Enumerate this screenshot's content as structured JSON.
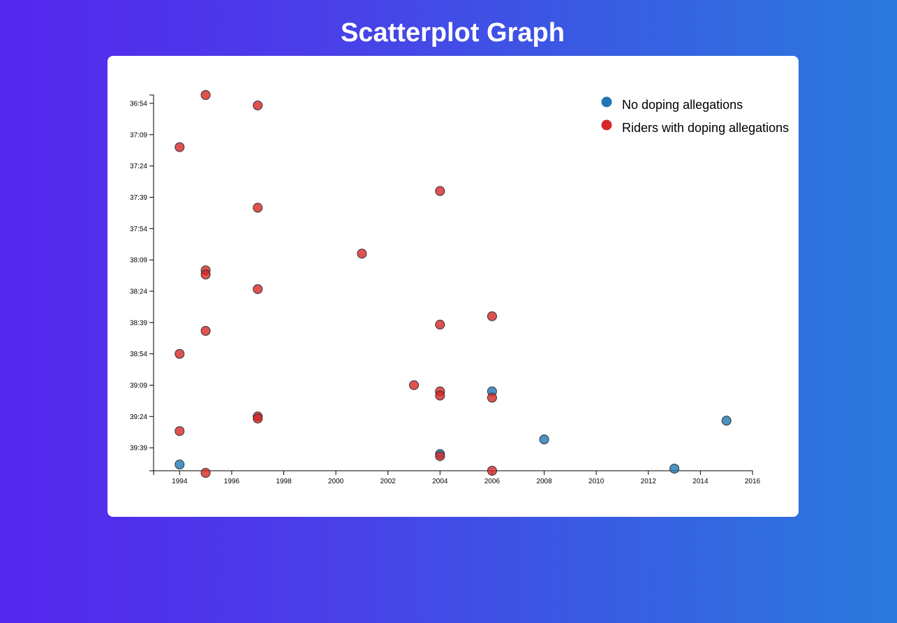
{
  "page": {
    "title": "Scatterplot Graph"
  },
  "colors": {
    "no_doping": "#1f77b4",
    "doping": "#d62728"
  },
  "chart_data": {
    "type": "scatter",
    "title": "Scatterplot Graph",
    "xlabel": "",
    "ylabel": "",
    "xlim": [
      1993,
      2016
    ],
    "ylim_seconds": [
      2210,
      2390
    ],
    "x_ticks": [
      "1994",
      "1996",
      "1998",
      "2000",
      "2002",
      "2004",
      "2006",
      "2008",
      "2010",
      "2012",
      "2014",
      "2016"
    ],
    "y_ticks": [
      "36:54",
      "37:09",
      "37:24",
      "37:39",
      "37:54",
      "38:09",
      "38:24",
      "38:39",
      "38:54",
      "39:09",
      "39:24",
      "39:39"
    ],
    "y_reversed": true,
    "legend": {
      "placement": "top-right",
      "entries": [
        {
          "label": "No doping allegations",
          "color": "#1f77b4"
        },
        {
          "label": "Riders with doping allegations",
          "color": "#d62728"
        }
      ]
    },
    "series": [
      {
        "name": "No doping allegations",
        "color": "#1f77b4",
        "points": [
          {
            "x": 1994,
            "y": "39:47"
          },
          {
            "x": 2004,
            "y": "39:42"
          },
          {
            "x": 2006,
            "y": "39:12"
          },
          {
            "x": 2008,
            "y": "39:35"
          },
          {
            "x": 2013,
            "y": "39:49"
          },
          {
            "x": 2015,
            "y": "39:26"
          }
        ]
      },
      {
        "name": "Riders with doping allegations",
        "color": "#d62728",
        "points": [
          {
            "x": 1994,
            "y": "37:15"
          },
          {
            "x": 1994,
            "y": "38:54"
          },
          {
            "x": 1994,
            "y": "39:31"
          },
          {
            "x": 1995,
            "y": "36:50"
          },
          {
            "x": 1995,
            "y": "38:14"
          },
          {
            "x": 1995,
            "y": "38:16"
          },
          {
            "x": 1995,
            "y": "38:43"
          },
          {
            "x": 1995,
            "y": "39:51"
          },
          {
            "x": 1997,
            "y": "36:55"
          },
          {
            "x": 1997,
            "y": "37:44"
          },
          {
            "x": 1997,
            "y": "38:23"
          },
          {
            "x": 1997,
            "y": "39:24"
          },
          {
            "x": 1997,
            "y": "39:25"
          },
          {
            "x": 2001,
            "y": "38:06"
          },
          {
            "x": 2003,
            "y": "39:09"
          },
          {
            "x": 2004,
            "y": "37:36"
          },
          {
            "x": 2004,
            "y": "38:40"
          },
          {
            "x": 2004,
            "y": "39:12"
          },
          {
            "x": 2004,
            "y": "39:14"
          },
          {
            "x": 2004,
            "y": "39:43"
          },
          {
            "x": 2006,
            "y": "38:36"
          },
          {
            "x": 2006,
            "y": "39:15"
          },
          {
            "x": 2006,
            "y": "39:50"
          }
        ]
      }
    ]
  }
}
